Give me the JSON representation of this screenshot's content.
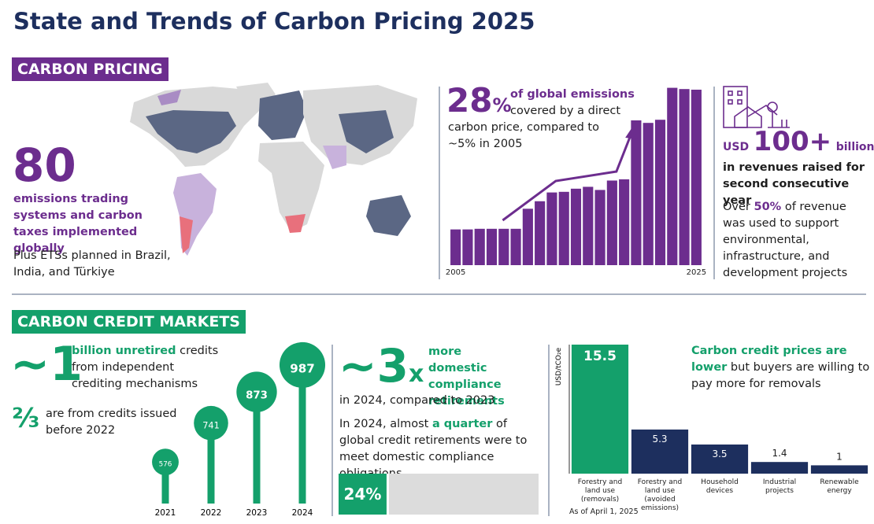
{
  "title": "State and Trends of Carbon Pricing 2025",
  "pricing": {
    "heading": "CARBON PRICING",
    "count": "80",
    "count_text": "emissions trading systems and carbon taxes implemented globally",
    "planned": "Plus ETSs planned in Brazil, India, and Türkiye",
    "coverage_value": "28",
    "coverage_unit": "%",
    "coverage_text_1": "of global emissions",
    "coverage_text_2": "covered by a direct",
    "coverage_text_3": "carbon price, compared to ~5% in 2005",
    "revenue_prefix": "USD",
    "revenue_value": "100+",
    "revenue_unit": "billion",
    "revenue_text": "in revenues raised for second consecutive year",
    "support_1": "Over",
    "support_pct": "50%",
    "support_2": "of revenue was used to support environmental, infrastructure, and development projects"
  },
  "credits": {
    "heading": "CARBON CREDIT MARKETS",
    "unretired_value": "~1",
    "unretired_bold": "billion unretired",
    "unretired_text": "credits from independent crediting mechanisms",
    "share_value": "⅔",
    "share_text": "are from credits issued before 2022",
    "growth_value": "~3",
    "growth_unit": "x",
    "growth_bold": "more domestic compliance retirements",
    "growth_text": "in 2024, compared to 2023",
    "quarter_1": "In 2024, almost",
    "quarter_bold": "a quarter",
    "quarter_2": "of global credit retirements were to meet domestic compliance obligations",
    "price_bold": "Carbon credit prices are lower",
    "price_text": "but buyers are willing to pay more for removals",
    "price_note": "As of April 1, 2025"
  },
  "chart_data": [
    {
      "type": "bar",
      "color": "#6c2d8e",
      "categories": [
        "2005",
        null,
        null,
        null,
        null,
        null,
        null,
        null,
        null,
        null,
        null,
        null,
        null,
        null,
        null,
        null,
        null,
        null,
        null,
        null,
        "2025"
      ],
      "values": [
        5.7,
        5.7,
        5.8,
        5.8,
        5.8,
        5.8,
        9.0,
        10.2,
        11.6,
        11.7,
        12.2,
        12.5,
        12.0,
        13.5,
        13.7,
        23.1,
        22.7,
        23.2,
        28.3,
        28.1,
        28
      ],
      "ylim": [
        0,
        28.5
      ]
    },
    {
      "type": "lollipop",
      "color": "#14a06b",
      "categories": [
        "2021",
        "2022",
        "2023",
        "2024"
      ],
      "values": [
        576,
        741,
        873,
        987
      ],
      "ylim": [
        400,
        1000
      ]
    },
    {
      "type": "progress",
      "color": "#14a06b",
      "track_color": "#dcdcdc",
      "values": [
        24
      ],
      "value_labels": [
        "24%"
      ],
      "xlim": [
        0,
        100
      ]
    },
    {
      "type": "bar",
      "y_label": "USD/tCO₂e",
      "data_labels": true,
      "categories": [
        "Forestry and land use (removals)",
        "Forestry and land use (avoided emissions)",
        "Household devices",
        "Industrial projects",
        "Renewable energy"
      ],
      "values": [
        15.5,
        5.3,
        3.5,
        1.4,
        1
      ],
      "colors": [
        "#14a06b",
        "#1d2f5e",
        "#1d2f5e",
        "#1d2f5e",
        "#1d2f5e"
      ],
      "ylim": [
        0,
        15.5
      ]
    }
  ]
}
